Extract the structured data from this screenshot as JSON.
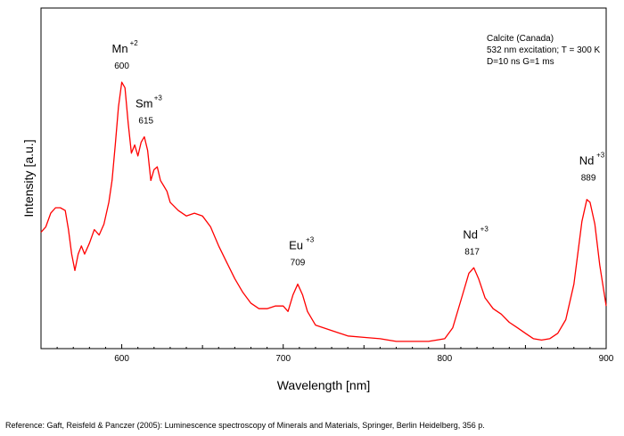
{
  "chart_data": {
    "type": "line",
    "xlabel": "Wavelength [nm]",
    "ylabel": "Intensity [a.u.]",
    "xlim": [
      550,
      900
    ],
    "ylim": [
      0,
      1
    ],
    "x_ticks": [
      600,
      700,
      800,
      900
    ],
    "grid": false,
    "line_color": "#ff0000",
    "info_text": [
      "Calcite (Canada)",
      "532 nm excitation; T = 300 K",
      "D=10 ns G=1 ms"
    ],
    "annotations": [
      {
        "label": "Mn",
        "superscript": "+2",
        "value": "600",
        "x": 600,
        "y": 0.97
      },
      {
        "label": "Sm",
        "superscript": "+3",
        "value": "615",
        "x": 615,
        "y": 0.77
      },
      {
        "label": "Eu",
        "superscript": "+3",
        "value": "709",
        "x": 709,
        "y": 0.25
      },
      {
        "label": "Nd",
        "superscript": "+3",
        "value": "817",
        "x": 817,
        "y": 0.29
      },
      {
        "label": "Nd",
        "superscript": "+3",
        "value": "889",
        "x": 889,
        "y": 0.56
      }
    ],
    "series": [
      {
        "x": [
          550,
          553,
          556,
          559,
          562,
          565,
          567,
          569,
          571,
          573,
          575,
          577,
          580,
          583,
          586,
          589,
          592,
          594,
          596,
          598,
          600,
          602,
          604,
          606,
          608,
          610,
          612,
          614,
          616,
          618,
          620,
          622,
          624,
          626,
          628,
          630,
          635,
          640,
          645,
          650,
          655,
          660,
          665,
          670,
          675,
          680,
          685,
          690,
          695,
          700,
          703,
          706,
          709,
          712,
          715,
          720,
          730,
          740,
          750,
          760,
          770,
          780,
          790,
          800,
          805,
          810,
          815,
          818,
          821,
          825,
          830,
          835,
          840,
          845,
          850,
          855,
          860,
          865,
          870,
          875,
          880,
          885,
          888,
          890,
          893,
          896,
          900
        ],
        "y": [
          0.41,
          0.43,
          0.48,
          0.5,
          0.5,
          0.49,
          0.42,
          0.33,
          0.27,
          0.33,
          0.36,
          0.33,
          0.37,
          0.42,
          0.4,
          0.44,
          0.52,
          0.6,
          0.73,
          0.87,
          0.96,
          0.94,
          0.81,
          0.7,
          0.73,
          0.69,
          0.74,
          0.76,
          0.71,
          0.6,
          0.64,
          0.65,
          0.6,
          0.58,
          0.56,
          0.52,
          0.49,
          0.47,
          0.48,
          0.47,
          0.43,
          0.36,
          0.3,
          0.24,
          0.19,
          0.15,
          0.13,
          0.13,
          0.14,
          0.14,
          0.12,
          0.18,
          0.22,
          0.18,
          0.12,
          0.07,
          0.05,
          0.03,
          0.025,
          0.02,
          0.01,
          0.01,
          0.01,
          0.02,
          0.06,
          0.16,
          0.26,
          0.28,
          0.24,
          0.17,
          0.13,
          0.11,
          0.08,
          0.06,
          0.04,
          0.02,
          0.015,
          0.02,
          0.04,
          0.09,
          0.22,
          0.45,
          0.53,
          0.52,
          0.44,
          0.29,
          0.14
        ]
      }
    ]
  },
  "reference": "Reference: Gaft, Reisfeld & Panczer (2005): Luminescence spectroscopy of Minerals and Materials, Springer, Berlin Heidelberg, 356 p."
}
